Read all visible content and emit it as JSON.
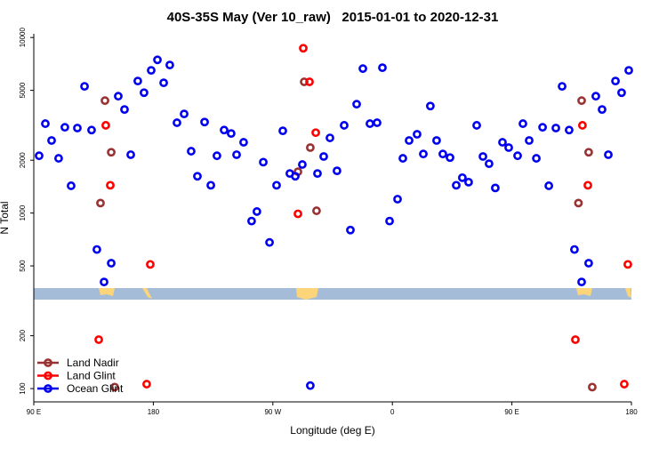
{
  "chart_data": {
    "type": "scatter",
    "title": "40S-35S May (Ver 10_raw)   2015-01-01 to 2020-12-31",
    "x_label": "Longitude (deg E)",
    "y_label": "N Total",
    "xlim": [
      90,
      540
    ],
    "ylim": [
      84,
      10500
    ],
    "y_log": true,
    "grid": false,
    "legend": "lower left",
    "xticks": [
      {
        "value": 90,
        "label": "90 E"
      },
      {
        "value": 180,
        "label": "180"
      },
      {
        "value": 270,
        "label": "90 W"
      },
      {
        "value": 360,
        "label": "0"
      },
      {
        "value": 450,
        "label": "90 E"
      },
      {
        "value": 540,
        "label": "180"
      }
    ],
    "yticks": [
      100,
      200,
      500,
      1000,
      2000,
      5000,
      10000
    ],
    "series": [
      {
        "name": "Land Nadir",
        "color": "#993333",
        "x": [
          140.2,
          143.6,
          148.3,
          150.9,
          288.9,
          293.6,
          298.2,
          302.9,
          502.5,
          507.8,
          500.1,
          510.5
        ],
        "values": [
          1140,
          4370,
          2220,
          102,
          1720,
          5590,
          2360,
          1030,
          4370,
          2220,
          1140,
          102
        ]
      },
      {
        "name": "Land Glint",
        "color": "#ff0000",
        "x": [
          138.9,
          144.2,
          147.6,
          177.7,
          175.0,
          288.9,
          292.9,
          297.6,
          302.3,
          497.8,
          503.1,
          507.2,
          534.6,
          537.3
        ],
        "values": [
          190,
          3160,
          1440,
          510,
          106,
          990,
          8690,
          5590,
          2870,
          190,
          3160,
          1440,
          106,
          510
        ]
      },
      {
        "name": "Ocean Glint",
        "color": "#0000ee",
        "x": [
          94.0,
          98.7,
          103.4,
          108.7,
          113.4,
          118.1,
          122.8,
          128.2,
          133.5,
          137.5,
          142.9,
          148.3,
          153.6,
          158.3,
          163.0,
          168.3,
          173.0,
          178.4,
          183.1,
          187.8,
          192.4,
          197.8,
          203.2,
          208.5,
          213.2,
          218.6,
          223.3,
          227.9,
          233.3,
          238.6,
          242.7,
          248.0,
          254.0,
          258.0,
          262.8,
          267.5,
          272.8,
          277.5,
          282.8,
          286.9,
          292.2,
          298.2,
          303.6,
          308.3,
          313.0,
          318.3,
          323.7,
          328.4,
          333.1,
          337.8,
          343.1,
          348.5,
          352.5,
          357.9,
          363.9,
          367.9,
          372.6,
          378.6,
          383.3,
          388.6,
          393.3,
          398.0,
          403.4,
          408.1,
          412.7,
          417.4,
          423.5,
          428.2,
          432.8,
          437.5,
          442.9,
          447.6,
          454.3,
          458.3,
          463.0,
          468.4,
          473.1,
          477.8,
          483.1,
          487.8,
          493.1,
          497.1,
          502.5,
          507.8,
          513.2,
          517.9,
          522.6,
          528.0,
          532.6,
          538.0
        ],
        "values": [
          2120,
          3230,
          2590,
          2050,
          3080,
          1430,
          3050,
          5270,
          2970,
          620,
          405,
          518,
          4630,
          3890,
          2150,
          5650,
          4850,
          6500,
          7460,
          5520,
          6970,
          3270,
          3670,
          2250,
          1620,
          3300,
          1440,
          2120,
          2970,
          2840,
          2150,
          2530,
          900,
          1020,
          1950,
          680,
          1440,
          2940,
          1680,
          1620,
          1890,
          104,
          1680,
          2100,
          2680,
          1740,
          3160,
          800,
          4170,
          6650,
          3230,
          3270,
          6730,
          900,
          1200,
          2050,
          2590,
          2810,
          2170,
          4070,
          2590,
          2170,
          2070,
          1440,
          1590,
          1500,
          3160,
          2100,
          1910,
          1390,
          2530,
          2360,
          2120,
          3230,
          2590,
          2050,
          3080,
          1430,
          3050,
          5270,
          2970,
          620,
          405,
          518,
          4630,
          3890,
          2150,
          5650,
          4850,
          6500
        ]
      }
    ]
  }
}
